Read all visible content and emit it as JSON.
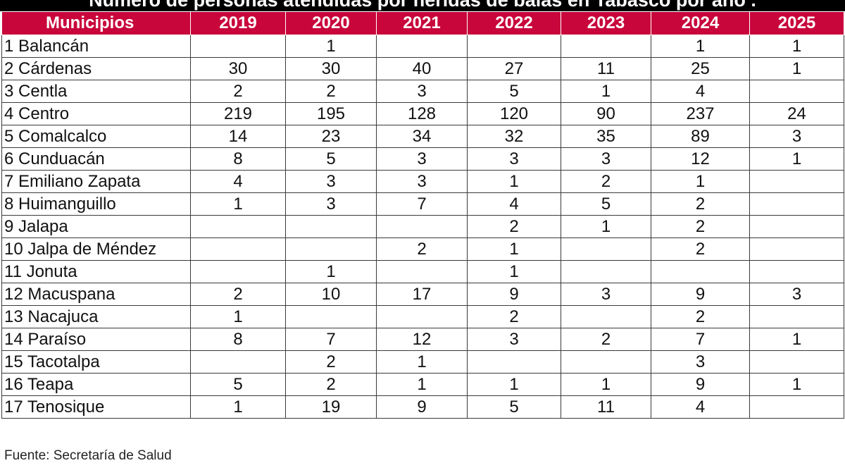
{
  "title": "Número de personas atendidas por heridas de balas en Tabasco por año .",
  "colors": {
    "header_bg": "#c8063b",
    "header_text": "#ffffff",
    "title_bg": "#000000"
  },
  "chart_data": {
    "type": "table",
    "title": "Número de personas atendidas por heridas de balas en Tabasco por año .",
    "columns": [
      "Municipios",
      "2019",
      "2020",
      "2021",
      "2022",
      "2023",
      "2024",
      "2025"
    ],
    "rows": [
      [
        "1 Balancán",
        "",
        "1",
        "",
        "",
        "",
        "1",
        "1"
      ],
      [
        "2 Cárdenas",
        "30",
        "30",
        "40",
        "27",
        "11",
        "25",
        "1"
      ],
      [
        "3 Centla",
        "2",
        "2",
        "3",
        "5",
        "1",
        "4",
        ""
      ],
      [
        "4 Centro",
        "219",
        "195",
        "128",
        "120",
        "90",
        "237",
        "24"
      ],
      [
        "5 Comalcalco",
        "14",
        "23",
        "34",
        "32",
        "35",
        "89",
        "3"
      ],
      [
        "6 Cunduacán",
        "8",
        "5",
        "3",
        "3",
        "3",
        "12",
        "1"
      ],
      [
        "7 Emiliano Zapata",
        "4",
        "3",
        "3",
        "1",
        "2",
        "1",
        ""
      ],
      [
        "8 Huimanguillo",
        "1",
        "3",
        "7",
        "4",
        "5",
        "2",
        ""
      ],
      [
        "9 Jalapa",
        "",
        "",
        "",
        "2",
        "1",
        "2",
        ""
      ],
      [
        "10 Jalpa de Méndez",
        "",
        "",
        "2",
        "1",
        "",
        "2",
        ""
      ],
      [
        "11 Jonuta",
        "",
        "1",
        "",
        "1",
        "",
        "",
        ""
      ],
      [
        "12 Macuspana",
        "2",
        "10",
        "17",
        "9",
        "3",
        "9",
        "3"
      ],
      [
        "13 Nacajuca",
        "1",
        "",
        "",
        "2",
        "",
        "2",
        ""
      ],
      [
        "14 Paraíso",
        "8",
        "7",
        "12",
        "3",
        "2",
        "7",
        "1"
      ],
      [
        "15 Tacotalpa",
        "",
        "2",
        "1",
        "",
        "",
        "3",
        ""
      ],
      [
        "16 Teapa",
        "5",
        "2",
        "1",
        "1",
        "1",
        "9",
        "1"
      ],
      [
        "17 Tenosique",
        "1",
        "19",
        "9",
        "5",
        "11",
        "4",
        ""
      ]
    ]
  },
  "source": "Fuente: Secretaría de Salud"
}
